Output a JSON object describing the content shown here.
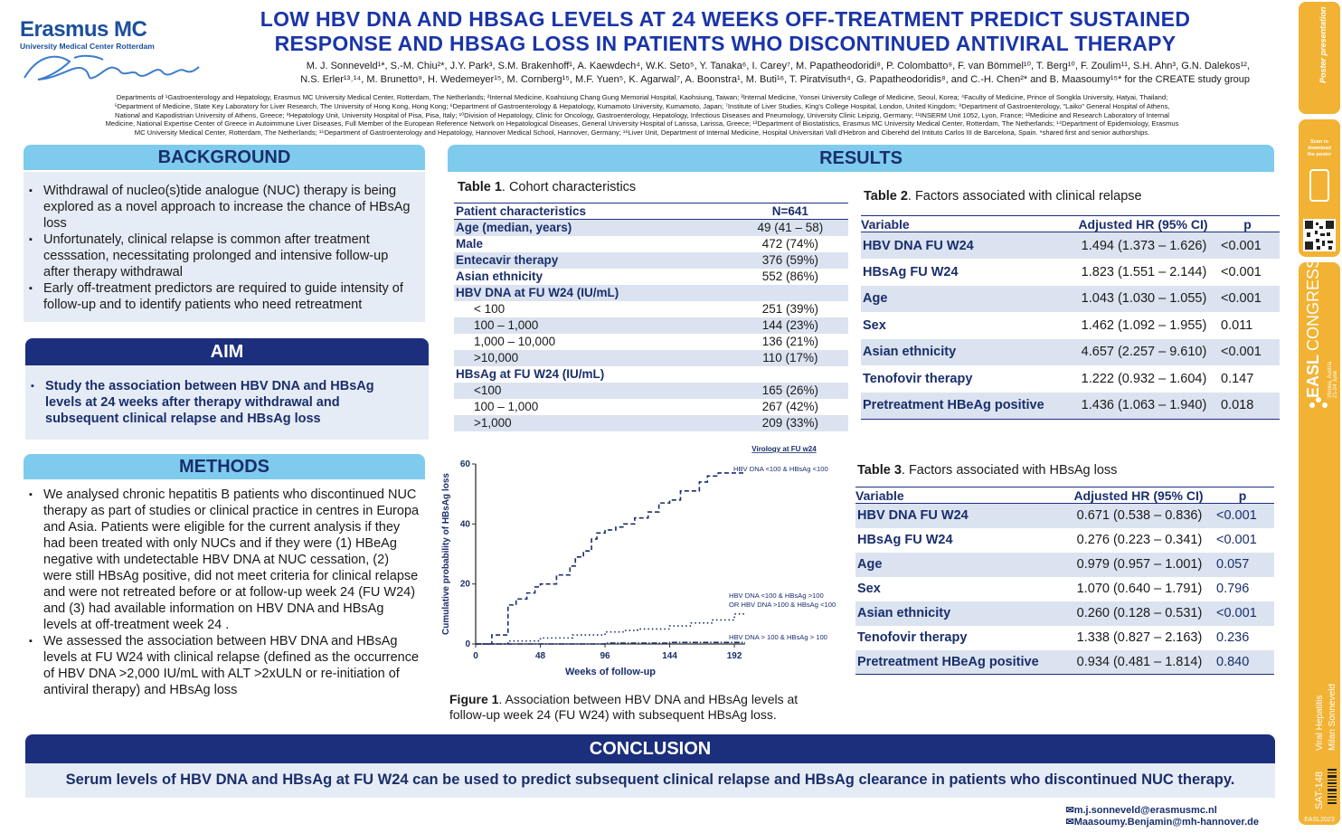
{
  "logo": {
    "name": "Erasmus MC",
    "subtitle": "University Medical Center Rotterdam"
  },
  "title": {
    "line1": "LOW HBV DNA AND HBSAG LEVELS AT 24 WEEKS OFF-TREATMENT PREDICT SUSTAINED",
    "line2": "RESPONSE AND HBSAG LOSS IN PATIENTS WHO DISCONTINUED ANTIVIRAL THERAPY"
  },
  "authors": {
    "line1": "M. J. Sonneveld¹*, S.-M. Chiu²*, J.Y. Park³, S.M. Brakenhoff¹, A. Kaewdech⁴, W.K. Seto⁵, Y. Tanaka⁶, I. Carey⁷, M. Papatheodoridi⁸, P. Colombatto⁹, F. van Bömmel¹⁰, T. Berg¹⁰, F. Zoulim¹¹, S.H. Ahn³, G.N. Dalekos¹²,",
    "line2": "N.S. Erler¹³˒¹⁴, M. Brunetto⁹, H. Wedemeyer¹⁵, M. Cornberg¹⁵, M.F. Yuen⁵, K. Agarwal⁷, A. Boonstra¹, M. Buti¹⁶, T. Piratvisuth⁴, G. Papatheodoridis⁸, and C.-H. Chen²* and B. Maasoumy¹⁵* for the CREATE study group"
  },
  "affiliations": {
    "line1": "Departments of ¹Gastroenterology and Hepatology, Erasmus MC University Medical Center, Rotterdam, The Netherlands; ²Internal Medicine, Koahsiung Chang Gung Memorial Hospital, Kaohsiung, Taiwan; ³Internal Medicine, Yonsei University College of Medicine, Seoul, Korea; ⁴Faculty of Medicine, Prince of Songkla University, Hatyai, Thailand;",
    "line2": "⁵Department of  Medicine, State Key Laboratory for Liver Research, The University of Hong Kong, Hong Kong; ⁶Department of Gastroenterology & Hepatology, Kumamoto University, Kumamoto, Japan; ⁷Institute of Liver Studies, King's College Hospital, London, United Kingdom; ⁸Department of Gastroenterology, \"Laiko\" General Hospital of Athens,",
    "line3": "National and Kapodistrian University of Athens, Greece; ⁹Hepatology Unit, University Hospital of Pisa, Pisa, Italy; ¹⁰Division of Hepatology, Clinic for Oncology, Gastroenterology, Hepatology, Infectious Diseases and Pneumology, University Clinic Leipzig, Germany; ¹¹INSERM Unit 1052, Lyon, France; ¹²Medicine and Research Laboratory of Internal",
    "line4": "Medicine, National Expertise Center of Greece in Autoimmune Liver Diseases, Full Member of the European Reference Network on Hepatological Diseases, General University Hospital of Larissa, Larissa, Greece; ¹³Department of Biostatistics, Erasmus MC University Medical Center, Rotterdam, The Netherlands; ¹⁴Department of Epidemiology, Erasmus",
    "line5": "MC University Medical Center, Rotterdam, The Netherlands; ¹⁵Department of Gastroenterology and Hepatology, Hannover Medical School, Hannover, Germany; ¹⁶Liver Unit, Department of Internal Medicine, Hospital Universitari Vall d'Hebron and Ciberehd del Intituto Carlos III de Barcelona, Spain. *shared first and senior authorships."
  },
  "background": {
    "heading": "BACKGROUND",
    "items": [
      "Withdrawal of nucleo(s)tide analogue (NUC) therapy is being explored as a novel approach to increase the chance of HBsAg loss",
      "Unfortunately, clinical relapse is common after treatment cesssation, necessitating prolonged and intensive follow-up after therapy withdrawal",
      "Early off-treatment predictors are required to guide intensity of follow-up and to identify patients who need retreatment"
    ]
  },
  "aim": {
    "heading": "AIM",
    "text": "Study the association between HBV DNA and HBsAg levels at 24 weeks after therapy withdrawal and subsequent clinical relapse and HBsAg loss"
  },
  "methods": {
    "heading": "METHODS",
    "items": [
      "We analysed chronic hepatitis B patients who discontinued NUC therapy as part of studies or clinical practice in centres in Europa and Asia. Patients were eligible for the current analysis if they had been treated with only NUCs and if they were (1) HBeAg negative with undetectable HBV DNA at NUC cessation, (2) were still HBsAg positive, did not meet criteria for clinical relapse and were not retreated before or at follow-up week 24 (FU W24) and (3) had available information on HBV DNA and HBsAg levels at off-treatment week 24 .",
      "We assessed the association between HBV DNA and HBsAg levels at FU W24 with clinical relapse (defined as the occurrence of HBV DNA >2,000 IU/mL with ALT >2xULN or re-initiation of antiviral therapy) and HBsAg loss"
    ]
  },
  "results": {
    "heading": "RESULTS"
  },
  "table1": {
    "caption_bold": "Table 1",
    "caption_rest": ". Cohort characteristics",
    "header": [
      "Patient characteristics",
      "N=641"
    ],
    "rows": [
      {
        "label": "Age (median, years)",
        "value": "49 (41 – 58)",
        "bold": true,
        "shade": true,
        "indent": 0
      },
      {
        "label": "Male",
        "value": "472 (74%)",
        "bold": true,
        "shade": false,
        "indent": 0
      },
      {
        "label": "Entecavir therapy",
        "value": "376 (59%)",
        "bold": true,
        "shade": true,
        "indent": 0
      },
      {
        "label": "Asian ethnicity",
        "value": "552 (86%)",
        "bold": true,
        "shade": false,
        "indent": 0
      },
      {
        "label": "HBV DNA at FU W24 (IU/mL)",
        "value": "",
        "bold": true,
        "shade": true,
        "indent": 0
      },
      {
        "label": "< 100",
        "value": "251 (39%)",
        "bold": false,
        "shade": false,
        "indent": 1
      },
      {
        "label": "100 – 1,000",
        "value": "144 (23%)",
        "bold": false,
        "shade": true,
        "indent": 1
      },
      {
        "label": "1,000 – 10,000",
        "value": "136 (21%)",
        "bold": false,
        "shade": false,
        "indent": 1
      },
      {
        "label": ">10,000",
        "value": "110 (17%)",
        "bold": false,
        "shade": true,
        "indent": 1
      },
      {
        "label": "HBsAg at FU W24 (IU/mL)",
        "value": "",
        "bold": true,
        "shade": false,
        "indent": 0
      },
      {
        "label": "<100",
        "value": "165 (26%)",
        "bold": false,
        "shade": true,
        "indent": 1
      },
      {
        "label": "100 – 1,000",
        "value": "267 (42%)",
        "bold": false,
        "shade": false,
        "indent": 1
      },
      {
        "label": ">1,000",
        "value": "209 (33%)",
        "bold": false,
        "shade": true,
        "indent": 1
      }
    ]
  },
  "table2": {
    "caption_bold": "Table 2",
    "caption_rest": ". Factors associated with clinical relapse",
    "header": [
      "Variable",
      "Adjusted HR (95% CI)",
      "p"
    ],
    "rows": [
      [
        "HBV DNA FU W24",
        "1.494 (1.373 – 1.626)",
        "<0.001"
      ],
      [
        "HBsAg FU W24",
        "1.823 (1.551 – 2.144)",
        "<0.001"
      ],
      [
        "Age",
        "1.043 (1.030 – 1.055)",
        "<0.001"
      ],
      [
        "Sex",
        "1.462 (1.092 – 1.955)",
        "0.011"
      ],
      [
        "Asian ethnicity",
        "4.657 (2.257 – 9.610)",
        "<0.001"
      ],
      [
        "Tenofovir therapy",
        "1.222 (0.932 – 1.604)",
        "0.147"
      ],
      [
        "Pretreatment HBeAg positive",
        "1.436 (1.063 – 1.940)",
        "0.018"
      ]
    ]
  },
  "table3": {
    "caption_bold": "Table 3",
    "caption_rest": ". Factors associated with HBsAg loss",
    "header": [
      "Variable",
      "Adjusted HR (95% CI)",
      "p"
    ],
    "rows": [
      [
        "HBV DNA FU W24",
        "0.671 (0.538 – 0.836)",
        "<0.001"
      ],
      [
        "HBsAg FU W24",
        "0.276 (0.223 – 0.341)",
        "<0.001"
      ],
      [
        "Age",
        "0.979 (0.957 – 1.001)",
        "0.057"
      ],
      [
        "Sex",
        "1.070 (0.640 – 1.791)",
        "0.796"
      ],
      [
        "Asian ethnicity",
        "0.260 (0.128 – 0.531)",
        "<0.001"
      ],
      [
        "Tenofovir therapy",
        "1.338 (0.827 – 2.163)",
        "0.236"
      ],
      [
        "Pretreatment HBeAg positive",
        "0.934 (0.481 – 1.814)",
        "0.840"
      ]
    ]
  },
  "figure1": {
    "caption_bold": "Figure 1",
    "caption_line1": ". Association between HBV DNA and HBsAg levels at",
    "caption_line2": "follow-up week 24 (FU W24) with subsequent HBsAg loss."
  },
  "chart_data": {
    "type": "line",
    "title": "Virology at FU w24",
    "xlabel": "Weeks of follow-up",
    "ylabel": "Cumulative probability of HBsAg loss",
    "xticks": [
      0,
      48,
      96,
      144,
      192
    ],
    "yticks": [
      0,
      20,
      40,
      60
    ],
    "xlim": [
      0,
      200
    ],
    "ylim": [
      0,
      60
    ],
    "grid": false,
    "series": [
      {
        "name": "HBV DNA <100 & HBsAg <100",
        "style": "dashed",
        "x": [
          0,
          12,
          22,
          24,
          30,
          38,
          44,
          48,
          60,
          70,
          74,
          80,
          86,
          90,
          96,
          104,
          110,
          118,
          128,
          136,
          144,
          152,
          158,
          166,
          172,
          180,
          190,
          200
        ],
        "y": [
          0,
          3,
          3,
          13,
          15,
          17,
          19,
          20,
          23,
          26,
          29,
          31,
          35,
          37,
          38,
          39,
          40,
          42,
          44,
          47,
          48,
          51,
          51,
          54,
          56,
          57,
          57,
          57
        ]
      },
      {
        "name": "HBV DNA <100 & HBsAg >100 OR HBV DNA >100 & HBsAg <100",
        "style": "dotted",
        "x": [
          0,
          12,
          24,
          48,
          72,
          96,
          110,
          120,
          144,
          160,
          176,
          192,
          200
        ],
        "y": [
          0,
          0,
          1,
          2,
          3,
          4,
          4.5,
          5,
          6,
          7,
          8,
          10,
          10
        ]
      },
      {
        "name": "HBV DNA > 100 & HBsAg > 100",
        "style": "dash-dot",
        "x": [
          0,
          48,
          96,
          144,
          192,
          200
        ],
        "y": [
          0,
          0,
          0.3,
          0.5,
          0.5,
          0.5
        ]
      }
    ],
    "annotations": [
      {
        "text": "HBV DNA <100 & HBsAg <100"
      },
      {
        "text": "HBV DNA <100 & HBsAg >100"
      },
      {
        "text": "OR HBV DNA >100 & HBsAg <100"
      },
      {
        "text": "HBV DNA > 100 & HBsAg > 100"
      }
    ]
  },
  "conclusion": {
    "heading": "CONCLUSION",
    "text": "Serum levels of HBV DNA and HBsAg at FU W24 can be used to predict subsequent clinical relapse and HBsAg clearance in patients who discontinued NUC therapy."
  },
  "contacts": [
    "m.j.sonneveld@erasmusmc.nl",
    "Maasoumy.Benjamin@mh-hannover.de"
  ],
  "sidebar": {
    "scan_text": "Scan to download the poster",
    "congress_line1": "EASL",
    "congress_line2": "CONGRESS",
    "congress_line3": "2023",
    "congress_place": "Vienna, Austria",
    "congress_dates": "21-24 June",
    "topic": "Viral Hepatitis",
    "author": "Milan Sonneveld",
    "code": "SAT-148",
    "footer": "EASL2023"
  },
  "colors": {
    "dark_blue": "#1c2f7c",
    "light_blue": "#7ecbee",
    "panel": "#e6ecf5",
    "orange": "#f2b233",
    "title_blue": "#1a35a8"
  }
}
